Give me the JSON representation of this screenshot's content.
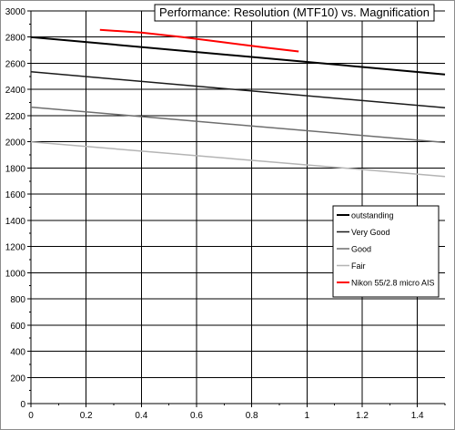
{
  "chart_data": {
    "type": "line",
    "title": "Performance: Resolution (MTF10) vs. Magnification",
    "xlabel": "",
    "ylabel": "",
    "xlim": [
      0,
      1.5
    ],
    "ylim": [
      0,
      3000
    ],
    "x_ticks": [
      "0",
      "0.2",
      "0.4",
      "0.6",
      "0.8",
      "1",
      "1.2",
      "1.4"
    ],
    "y_ticks": [
      "0",
      "200",
      "400",
      "600",
      "800",
      "1000",
      "1200",
      "1400",
      "1600",
      "1800",
      "2000",
      "2200",
      "2400",
      "2600",
      "2800",
      "3000"
    ],
    "grid": true,
    "legend_position": "right",
    "series": [
      {
        "name": "outstanding",
        "color": "#000000",
        "x": [
          0,
          1.5
        ],
        "y": [
          2800,
          2515
        ]
      },
      {
        "name": "Very Good",
        "color": "#1a1a1a",
        "x": [
          0,
          1.5
        ],
        "y": [
          2535,
          2260
        ]
      },
      {
        "name": "Good",
        "color": "#6e6e6e",
        "x": [
          0,
          1.5
        ],
        "y": [
          2265,
          1995
        ]
      },
      {
        "name": "Fair",
        "color": "#b4b4b4",
        "x": [
          0,
          1.5
        ],
        "y": [
          2000,
          1735
        ]
      },
      {
        "name": "Nikon 55/2.8 micro AIS",
        "color": "#ff0000",
        "x": [
          0.25,
          0.4,
          0.55,
          0.7,
          0.85,
          0.97
        ],
        "y": [
          2855,
          2835,
          2800,
          2760,
          2720,
          2690
        ]
      }
    ]
  }
}
